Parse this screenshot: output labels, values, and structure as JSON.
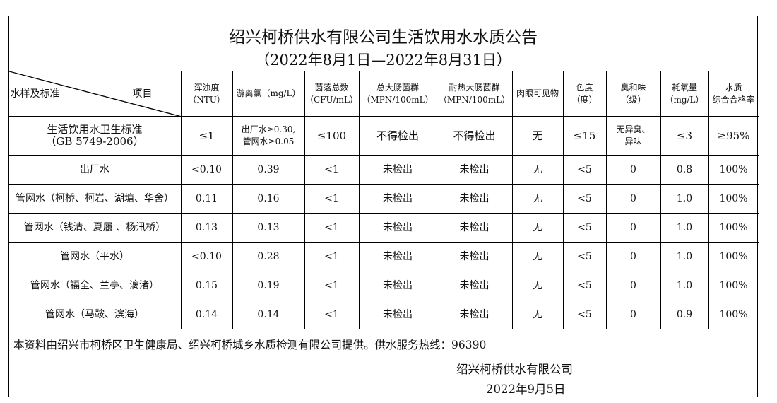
{
  "title": "绍兴柯桥供水有限公司生活饮用水水质公告",
  "period": "（2022年8月1日—2022年8月31日）",
  "header": {
    "corner_left": "水样及标准",
    "corner_right": "项目",
    "columns": [
      [
        "浑浊度",
        "（NTU）"
      ],
      [
        "游离氯（mg/L）",
        ""
      ],
      [
        "菌落总数",
        "（CFU/mL）"
      ],
      [
        "总大肠菌群",
        "（MPN/100mL）"
      ],
      [
        "耐热大肠菌群",
        "（MPN/100mL）"
      ],
      [
        "肉眼可见物",
        ""
      ],
      [
        "色度",
        "（度）"
      ],
      [
        "臭和味",
        "（级）"
      ],
      [
        "耗氧量",
        "（mg/L）"
      ],
      [
        "水质",
        "综合合格率"
      ]
    ]
  },
  "standard": {
    "name": [
      "生活饮用水卫生标准",
      "（GB 5749-2006）"
    ],
    "values": [
      "≤1",
      [
        "出厂水≥0.30,",
        "管网水≥0.05"
      ],
      "≤100",
      "不得检出",
      "不得检出",
      "无",
      "≤15",
      [
        "无异臭、",
        "异味"
      ],
      "≤3",
      "≥95%"
    ]
  },
  "rows": [
    {
      "name": "出厂水",
      "values": [
        "<0.10",
        "0.39",
        "<1",
        "未检出",
        "未检出",
        "无",
        "<5",
        "0",
        "0.8",
        "100%"
      ]
    },
    {
      "name": "管网水（柯桥、柯岩、湖塘、华舍）",
      "values": [
        "0.11",
        "0.16",
        "<1",
        "未检出",
        "未检出",
        "无",
        "<5",
        "0",
        "1.0",
        "100%"
      ]
    },
    {
      "name": "管网水（钱清、夏履 、杨汛桥）",
      "values": [
        "0.13",
        "0.13",
        "<1",
        "未检出",
        "未检出",
        "无",
        "<5",
        "0",
        "1.0",
        "100%"
      ]
    },
    {
      "name": "管网水（平水）",
      "values": [
        "<0.10",
        "0.28",
        "<1",
        "未检出",
        "未检出",
        "无",
        "<5",
        "0",
        "1.0",
        "100%"
      ]
    },
    {
      "name": "管网水（福全、兰亭、漓渚）",
      "values": [
        "0.15",
        "0.19",
        "<1",
        "未检出",
        "未检出",
        "无",
        "<5",
        "0",
        "1.0",
        "100%"
      ]
    },
    {
      "name": "管网水（马鞍、滨海）",
      "values": [
        "0.14",
        "0.14",
        "<1",
        "未检出",
        "未检出",
        "无",
        "<5",
        "0",
        "0.9",
        "100%"
      ]
    }
  ],
  "footer": {
    "note": "本资料由绍兴市柯桥区卫生健康局、绍兴柯桥城乡水质检测有限公司提供。供水服务热线：96390",
    "company": "绍兴柯桥供水有限公司",
    "date": "2022年9月5日"
  }
}
